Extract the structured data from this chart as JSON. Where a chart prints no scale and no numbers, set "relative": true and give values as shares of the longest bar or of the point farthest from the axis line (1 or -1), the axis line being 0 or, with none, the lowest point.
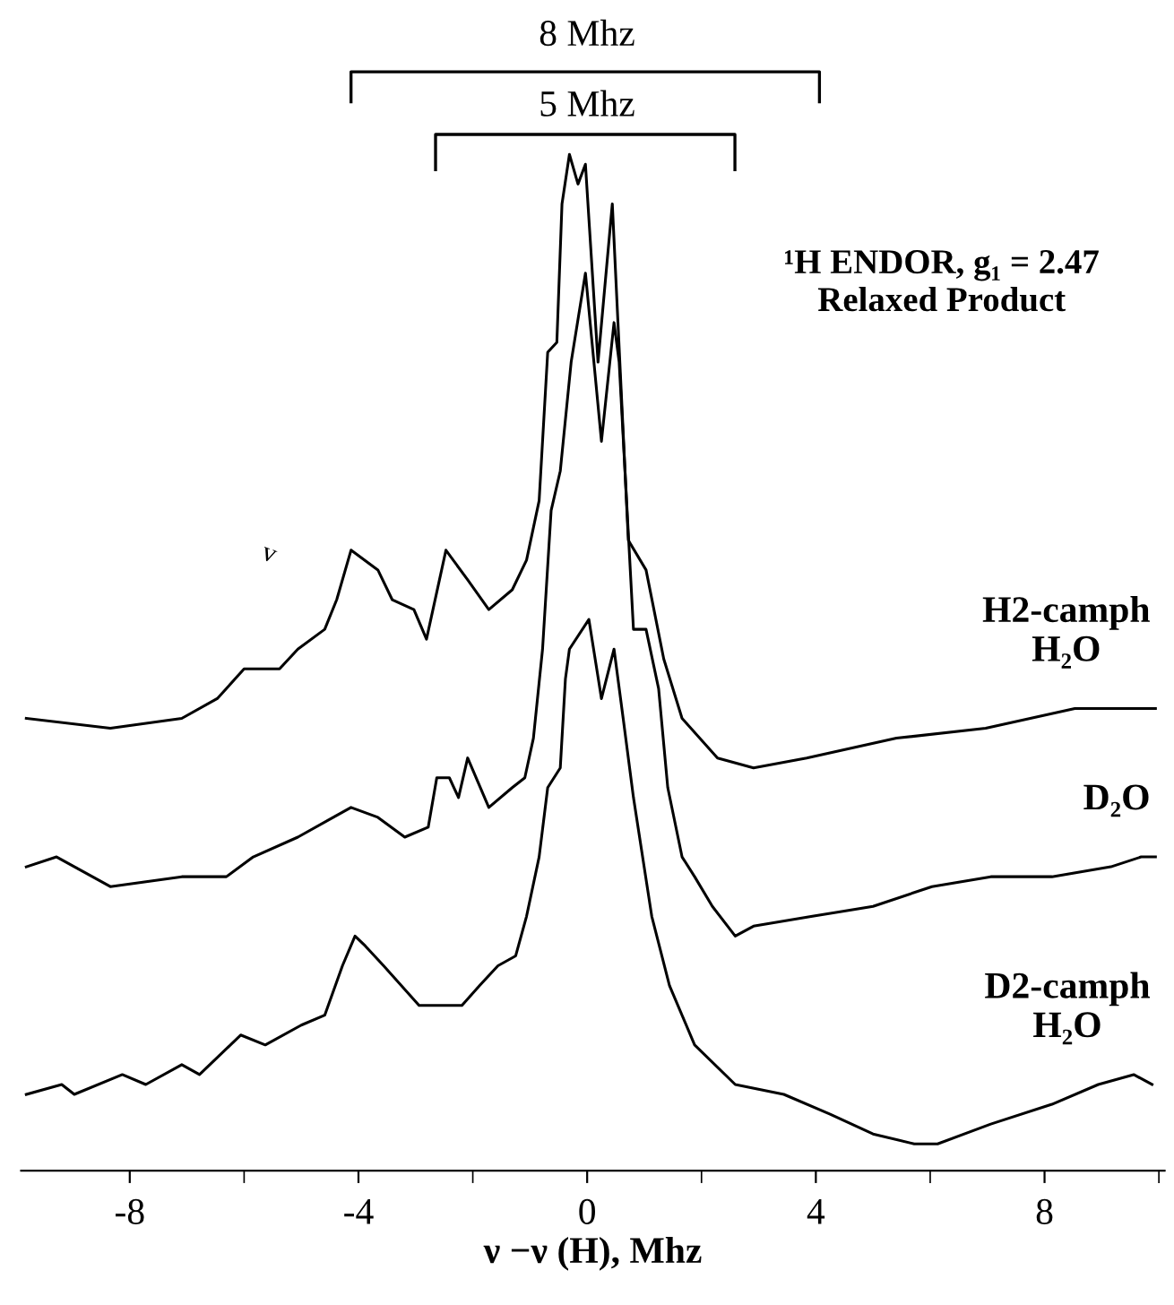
{
  "chart_data": {
    "type": "line",
    "title": "¹H ENDOR, g₁ = 2.47",
    "subtitle": "Relaxed Product",
    "xlabel": "ν −ν (H), Mhz",
    "relative": true,
    "grid": false,
    "legend": false,
    "marker": "none",
    "line_style": "solid",
    "xlim": [
      -9.9,
      10.1
    ],
    "xticks": [
      -8,
      -4,
      0,
      4,
      8
    ],
    "tick_labels": "x",
    "annotations": [
      "8 Mhz",
      "5 Mhz",
      "v"
    ],
    "series": [
      {
        "name": "H2-camph\nH₂O",
        "color": "#000000",
        "x": [
          -9.81,
          -8.34,
          -7.09,
          -6.47,
          -6.0,
          -5.38,
          -5.06,
          -4.59,
          -4.38,
          -4.13,
          -3.66,
          -3.41,
          -3.03,
          -2.81,
          -2.47,
          -2.09,
          -1.72,
          -1.31,
          -1.06,
          -0.84,
          -0.69,
          -0.53,
          -0.44,
          -0.31,
          -0.16,
          -0.03,
          0.19,
          0.44,
          0.72,
          1.03,
          1.34,
          1.66,
          2.28,
          2.91,
          3.84,
          5.41,
          6.97,
          8.53,
          9.94
        ],
        "values": [
          0.43,
          0.42,
          0.43,
          0.45,
          0.48,
          0.48,
          0.5,
          0.52,
          0.55,
          0.6,
          0.58,
          0.55,
          0.54,
          0.51,
          0.6,
          0.57,
          0.54,
          0.56,
          0.59,
          0.65,
          0.8,
          0.81,
          0.95,
          1.0,
          0.97,
          0.99,
          0.79,
          0.95,
          0.61,
          0.58,
          0.49,
          0.43,
          0.39,
          0.38,
          0.39,
          0.41,
          0.42,
          0.44,
          0.44
        ]
      },
      {
        "name": "D₂O",
        "color": "#000000",
        "x": [
          -9.81,
          -9.28,
          -8.34,
          -7.09,
          -6.31,
          -5.84,
          -5.06,
          -4.44,
          -4.13,
          -3.66,
          -3.19,
          -2.78,
          -2.63,
          -2.41,
          -2.25,
          -2.09,
          -1.72,
          -1.31,
          -1.09,
          -0.94,
          -0.78,
          -0.63,
          -0.47,
          -0.28,
          -0.03,
          0.25,
          0.47,
          0.56,
          0.81,
          1.03,
          1.25,
          1.41,
          1.66,
          1.88,
          2.19,
          2.59,
          2.91,
          3.94,
          5.0,
          6.03,
          7.06,
          8.13,
          9.16,
          9.69,
          9.94
        ],
        "values": [
          0.28,
          0.29,
          0.26,
          0.27,
          0.27,
          0.29,
          0.31,
          0.33,
          0.34,
          0.33,
          0.31,
          0.32,
          0.37,
          0.37,
          0.35,
          0.39,
          0.34,
          0.36,
          0.37,
          0.41,
          0.5,
          0.64,
          0.68,
          0.79,
          0.88,
          0.71,
          0.83,
          0.79,
          0.52,
          0.52,
          0.46,
          0.36,
          0.29,
          0.27,
          0.24,
          0.21,
          0.22,
          0.23,
          0.24,
          0.26,
          0.27,
          0.27,
          0.28,
          0.29,
          0.29
        ]
      },
      {
        "name": "D2-camph\nH₂O",
        "color": "#000000",
        "x": [
          -9.81,
          -9.19,
          -8.97,
          -8.13,
          -7.72,
          -7.09,
          -6.78,
          -6.06,
          -5.63,
          -5.0,
          -4.59,
          -4.28,
          -4.06,
          -3.88,
          -3.56,
          -2.94,
          -2.5,
          -2.19,
          -1.88,
          -1.56,
          -1.25,
          -1.06,
          -0.84,
          -0.69,
          -0.47,
          -0.38,
          -0.31,
          0.03,
          0.25,
          0.47,
          0.63,
          0.81,
          1.13,
          1.44,
          1.88,
          2.59,
          3.44,
          4.25,
          5.0,
          5.72,
          6.13,
          7.06,
          8.13,
          8.94,
          9.56,
          9.88
        ],
        "values": [
          0.05,
          0.06,
          0.05,
          0.07,
          0.06,
          0.08,
          0.07,
          0.11,
          0.1,
          0.12,
          0.13,
          0.18,
          0.21,
          0.2,
          0.18,
          0.14,
          0.14,
          0.14,
          0.16,
          0.18,
          0.19,
          0.23,
          0.29,
          0.36,
          0.38,
          0.47,
          0.5,
          0.53,
          0.45,
          0.5,
          0.43,
          0.35,
          0.23,
          0.16,
          0.1,
          0.06,
          0.05,
          0.03,
          0.01,
          0.0,
          0.0,
          0.02,
          0.04,
          0.06,
          0.07,
          0.06
        ]
      }
    ]
  }
}
